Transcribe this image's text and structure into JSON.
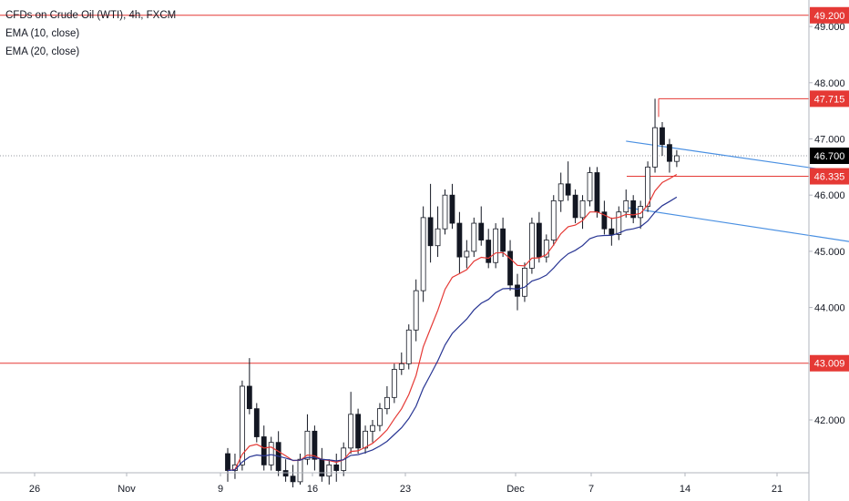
{
  "legend": {
    "title": "CFDs on Crude Oil (WTI), 4h, FXCM",
    "ema1": "EMA (10, close)",
    "ema2": "EMA (20, close)"
  },
  "colors": {
    "candle_up": "#ffffff",
    "candle_down": "#131722",
    "candle_border": "#131722",
    "ema10": "#e53935",
    "ema20": "#283593",
    "channel": "#4a90e2",
    "level": "#e53935",
    "last_price": "#000000"
  },
  "chart_data": {
    "type": "candlestick",
    "symbol": "CFDs on Crude Oil (WTI)",
    "timeframe": "4h",
    "source": "FXCM",
    "x_ticks": [
      "26",
      "Nov",
      "9",
      "16",
      "23",
      "Dec",
      "7",
      "14",
      "21"
    ],
    "y_ticks": [
      "42.000",
      "43.000",
      "44.000",
      "45.000",
      "46.000",
      "47.000",
      "48.000",
      "49.000"
    ],
    "ylim": [
      41.0,
      49.5
    ],
    "horizontal_levels": [
      "49.200",
      "47.715",
      "46.335",
      "43.009"
    ],
    "last_price": "46.700",
    "channel": {
      "upper": {
        "from": [
          55,
          46.96
        ],
        "to": [
          111,
          45.92
        ]
      },
      "lower": {
        "from": [
          55,
          45.78
        ],
        "to": [
          111,
          44.68
        ]
      }
    },
    "candles_ohlc": [
      [
        41.4,
        41.5,
        40.9,
        41.1
      ],
      [
        41.1,
        41.4,
        40.95,
        41.2
      ],
      [
        41.2,
        42.7,
        41.1,
        42.6
      ],
      [
        42.6,
        43.1,
        42.1,
        42.2
      ],
      [
        42.2,
        42.3,
        41.6,
        41.7
      ],
      [
        41.7,
        41.9,
        41.1,
        41.2
      ],
      [
        41.2,
        41.7,
        41.1,
        41.6
      ],
      [
        41.6,
        41.8,
        41.0,
        41.1
      ],
      [
        41.1,
        41.3,
        40.9,
        41.0
      ],
      [
        41.0,
        41.2,
        40.8,
        40.9
      ],
      [
        40.9,
        41.4,
        40.85,
        41.3
      ],
      [
        41.3,
        42.1,
        41.2,
        41.8
      ],
      [
        41.8,
        41.9,
        41.1,
        41.3
      ],
      [
        41.3,
        41.5,
        40.9,
        41.0
      ],
      [
        41.0,
        41.3,
        40.85,
        41.2
      ],
      [
        41.2,
        41.4,
        40.9,
        41.1
      ],
      [
        41.1,
        41.6,
        41.0,
        41.5
      ],
      [
        41.5,
        42.5,
        41.4,
        42.1
      ],
      [
        42.1,
        42.2,
        41.4,
        41.5
      ],
      [
        41.5,
        41.9,
        41.4,
        41.8
      ],
      [
        41.8,
        42.0,
        41.6,
        41.9
      ],
      [
        41.9,
        42.3,
        41.8,
        42.2
      ],
      [
        42.2,
        42.6,
        42.1,
        42.4
      ],
      [
        42.4,
        43.0,
        42.3,
        42.9
      ],
      [
        42.9,
        43.2,
        42.8,
        43.0
      ],
      [
        43.0,
        43.7,
        42.9,
        43.6
      ],
      [
        43.6,
        44.5,
        43.4,
        44.3
      ],
      [
        44.3,
        45.8,
        44.1,
        45.6
      ],
      [
        45.6,
        46.2,
        44.8,
        45.1
      ],
      [
        45.1,
        45.8,
        44.9,
        45.4
      ],
      [
        45.4,
        46.1,
        45.3,
        46.0
      ],
      [
        46.0,
        46.2,
        45.4,
        45.5
      ],
      [
        45.5,
        45.7,
        44.6,
        44.9
      ],
      [
        44.9,
        45.2,
        44.7,
        45.0
      ],
      [
        45.0,
        45.6,
        44.9,
        45.5
      ],
      [
        45.5,
        45.8,
        45.1,
        45.2
      ],
      [
        45.2,
        45.4,
        44.7,
        44.8
      ],
      [
        44.8,
        45.5,
        44.7,
        45.4
      ],
      [
        45.4,
        45.6,
        44.9,
        45.0
      ],
      [
        45.0,
        45.2,
        44.3,
        44.4
      ],
      [
        44.4,
        44.6,
        43.95,
        44.2
      ],
      [
        44.2,
        44.8,
        44.1,
        44.7
      ],
      [
        44.7,
        45.6,
        44.6,
        45.5
      ],
      [
        45.5,
        45.7,
        44.8,
        44.9
      ],
      [
        44.9,
        45.3,
        44.8,
        45.2
      ],
      [
        45.2,
        46.0,
        45.1,
        45.9
      ],
      [
        45.9,
        46.4,
        45.7,
        46.2
      ],
      [
        46.2,
        46.6,
        45.9,
        46.0
      ],
      [
        46.0,
        46.1,
        45.5,
        45.6
      ],
      [
        45.6,
        46.0,
        45.4,
        45.9
      ],
      [
        45.9,
        46.5,
        45.8,
        46.4
      ],
      [
        46.4,
        46.5,
        45.6,
        45.7
      ],
      [
        45.7,
        45.9,
        45.3,
        45.4
      ],
      [
        45.4,
        45.6,
        45.1,
        45.3
      ],
      [
        45.3,
        45.8,
        45.2,
        45.7
      ],
      [
        45.7,
        46.1,
        45.6,
        45.9
      ],
      [
        45.9,
        46.0,
        45.5,
        45.6
      ],
      [
        45.6,
        45.9,
        45.4,
        45.8
      ],
      [
        45.8,
        46.6,
        45.7,
        46.5
      ],
      [
        46.5,
        47.715,
        46.4,
        47.2
      ],
      [
        47.2,
        47.3,
        46.7,
        46.9
      ],
      [
        46.9,
        47.0,
        46.4,
        46.6
      ],
      [
        46.6,
        46.8,
        46.5,
        46.7
      ]
    ]
  }
}
